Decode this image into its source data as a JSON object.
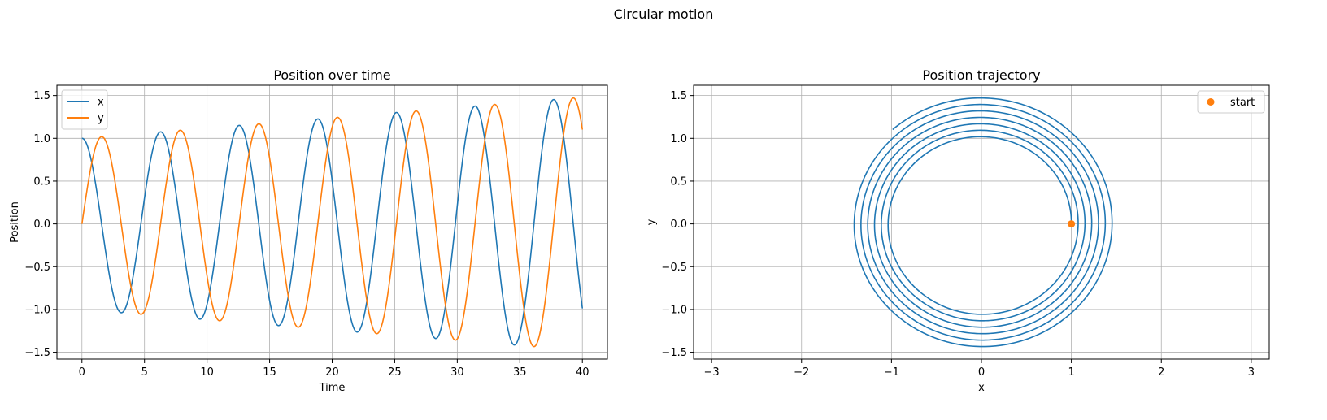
{
  "figure": {
    "suptitle": "Circular motion"
  },
  "colors": {
    "x": "#1f77b4",
    "y": "#ff7f0e",
    "grid": "#b0b0b0",
    "axis": "#000000"
  },
  "chart_data": [
    {
      "type": "line",
      "title": "Position over time",
      "xlabel": "Time",
      "ylabel": "Position",
      "xlim": [
        -2,
        42
      ],
      "ylim": [
        -1.58,
        1.62
      ],
      "xticks": [
        0,
        5,
        10,
        15,
        20,
        25,
        30,
        35,
        40
      ],
      "xtick_labels": [
        "0",
        "5",
        "10",
        "15",
        "20",
        "25",
        "30",
        "35",
        "40"
      ],
      "yticks": [
        -1.5,
        -1.0,
        -0.5,
        0.0,
        0.5,
        1.0,
        1.5
      ],
      "ytick_labels": [
        "−1.5",
        "−1.0",
        "−0.5",
        "0.0",
        "0.5",
        "1.0",
        "1.5"
      ],
      "grid": true,
      "legend": "upper-left",
      "x_range": [
        0,
        40
      ],
      "series": [
        {
          "name": "x",
          "function": "cos",
          "amplitude_start": 1.0,
          "amplitude_end": 1.48,
          "angular_frequency": 1.0
        },
        {
          "name": "y",
          "function": "sin",
          "amplitude_start": 1.0,
          "amplitude_end": 1.48,
          "angular_frequency": 1.0
        }
      ]
    },
    {
      "type": "line",
      "title": "Position trajectory",
      "xlabel": "x",
      "ylabel": "y",
      "xlim": [
        -3.2,
        3.2
      ],
      "ylim": [
        -1.58,
        1.62
      ],
      "xticks": [
        -3,
        -2,
        -1,
        0,
        1,
        2,
        3
      ],
      "xtick_labels": [
        "−3",
        "−2",
        "−1",
        "0",
        "1",
        "2",
        "3"
      ],
      "yticks": [
        -1.5,
        -1.0,
        -0.5,
        0.0,
        0.5,
        1.0,
        1.5
      ],
      "ytick_labels": [
        "−1.5",
        "−1.0",
        "−0.5",
        "0.0",
        "0.5",
        "1.0",
        "1.5"
      ],
      "grid": true,
      "legend": "upper-right",
      "trajectory": {
        "t_range": [
          0,
          40
        ],
        "amplitude_start": 1.0,
        "amplitude_end": 1.48
      },
      "markers": [
        {
          "name": "start",
          "x": 1.0,
          "y": 0.0
        }
      ]
    }
  ]
}
